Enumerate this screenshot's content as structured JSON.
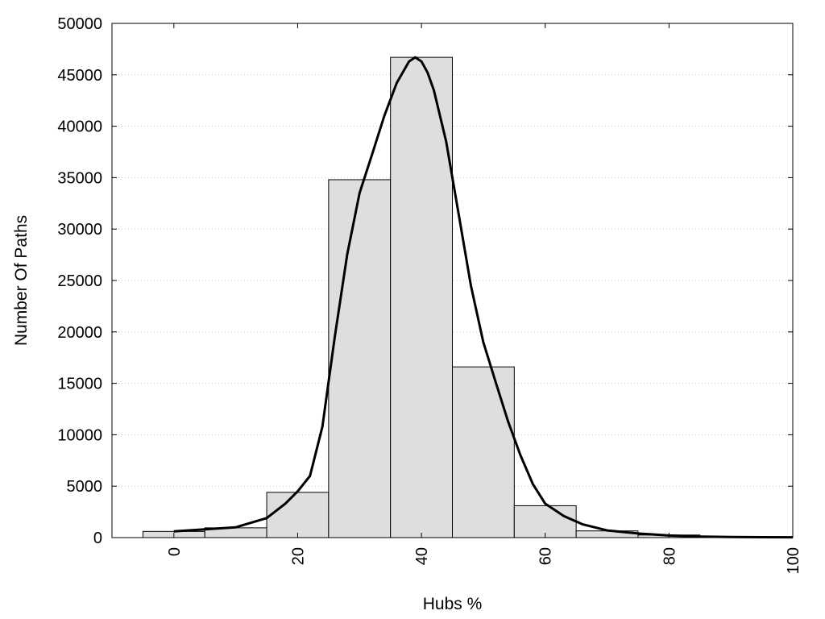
{
  "chart_data": {
    "type": "bar",
    "xlabel": "Hubs %",
    "ylabel": "Number Of Paths",
    "xlim": [
      -10,
      100
    ],
    "ylim": [
      0,
      50000
    ],
    "x_ticks": [
      0,
      20,
      40,
      60,
      80,
      100
    ],
    "y_ticks": [
      0,
      5000,
      10000,
      15000,
      20000,
      25000,
      30000,
      35000,
      40000,
      45000,
      50000
    ],
    "grid": "horizontal-dotted",
    "bar_width": 10,
    "bar_color": "#dedede",
    "bars": [
      {
        "x": 0,
        "value": 600
      },
      {
        "x": 10,
        "value": 950
      },
      {
        "x": 20,
        "value": 4400
      },
      {
        "x": 30,
        "value": 34800
      },
      {
        "x": 40,
        "value": 46700
      },
      {
        "x": 50,
        "value": 16600
      },
      {
        "x": 60,
        "value": 3100
      },
      {
        "x": 70,
        "value": 650
      },
      {
        "x": 80,
        "value": 250
      },
      {
        "x": 90,
        "value": 80
      }
    ],
    "curve": {
      "x": [
        0,
        5,
        10,
        15,
        18,
        20,
        22,
        24,
        26,
        28,
        30,
        32,
        34,
        36,
        38,
        39,
        40,
        41,
        42,
        44,
        46,
        48,
        50,
        52,
        54,
        56,
        58,
        60,
        63,
        66,
        70,
        75,
        80,
        85,
        90,
        95,
        100
      ],
      "y": [
        600,
        800,
        1000,
        1900,
        3300,
        4500,
        6000,
        10800,
        19500,
        27500,
        33500,
        37200,
        41000,
        44200,
        46300,
        46700,
        46300,
        45200,
        43500,
        38500,
        31500,
        24500,
        19000,
        15100,
        11300,
        8000,
        5200,
        3300,
        2100,
        1300,
        700,
        400,
        200,
        100,
        60,
        40,
        30
      ]
    }
  }
}
